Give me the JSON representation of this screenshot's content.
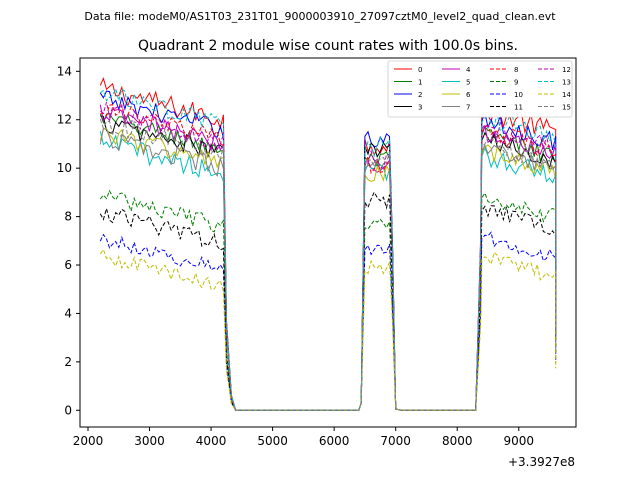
{
  "chart_data": {
    "type": "line",
    "suptitle": "Data file: modeM0/AS1T03_231T01_9000003910_27097cztM0_level2_quad_clean.evt",
    "title": "Quadrant 2 module wise count rates with 100.0s bins.",
    "xlabel": "",
    "ylabel": "",
    "x_offset_label": "+3.3927e8",
    "xlim": [
      1870,
      9930
    ],
    "ylim": [
      -0.69,
      14.55
    ],
    "xticks": [
      2000,
      3000,
      4000,
      5000,
      6000,
      7000,
      8000,
      9000
    ],
    "xtick_labels": [
      "2000",
      "3000",
      "4000",
      "5000",
      "6000",
      "7000",
      "8000",
      "9000"
    ],
    "yticks": [
      0,
      2,
      4,
      6,
      8,
      10,
      12,
      14
    ],
    "ytick_labels": [
      "0",
      "2",
      "4",
      "6",
      "8",
      "10",
      "12",
      "14"
    ],
    "grid": false,
    "legend_position": "top-right",
    "legend_columns": 4,
    "segments": [
      {
        "x_start": 2200,
        "x_end": 4200
      },
      {
        "x_start": 6500,
        "x_end": 6900
      },
      {
        "x_start": 8400,
        "x_end": 9600
      }
    ],
    "gap_x": [
      4300,
      4400,
      4500,
      6200,
      6300,
      6400,
      7000,
      7100,
      7200,
      8100,
      8200,
      8300
    ],
    "series": [
      {
        "name": "0",
        "color": "#ff0000",
        "dash": "solid",
        "level1": 12.4,
        "level2": 11.0,
        "level3": 11.8,
        "noise": 0.45
      },
      {
        "name": "1",
        "color": "#008000",
        "dash": "solid",
        "level1": 11.2,
        "level2": 10.3,
        "level3": 10.8,
        "noise": 0.4
      },
      {
        "name": "2",
        "color": "#0000ff",
        "dash": "solid",
        "level1": 12.0,
        "level2": 11.2,
        "level3": 11.4,
        "noise": 0.4
      },
      {
        "name": "3",
        "color": "#000000",
        "dash": "solid",
        "level1": 11.0,
        "level2": 10.8,
        "level3": 10.6,
        "noise": 0.4
      },
      {
        "name": "4",
        "color": "#bf00bf",
        "dash": "solid",
        "level1": 11.4,
        "level2": 10.2,
        "level3": 10.9,
        "noise": 0.4
      },
      {
        "name": "5",
        "color": "#00bfbf",
        "dash": "solid",
        "level1": 10.2,
        "level2": 9.8,
        "level3": 10.0,
        "noise": 0.45
      },
      {
        "name": "6",
        "color": "#bfbf00",
        "dash": "solid",
        "level1": 10.6,
        "level2": 9.7,
        "level3": 10.1,
        "noise": 0.4
      },
      {
        "name": "7",
        "color": "#808080",
        "dash": "solid",
        "level1": 10.4,
        "level2": 10.0,
        "level3": 10.2,
        "noise": 0.4
      },
      {
        "name": "8",
        "color": "#ff0000",
        "dash": "dashed",
        "level1": 11.6,
        "level2": 10.1,
        "level3": 11.0,
        "noise": 0.4
      },
      {
        "name": "9",
        "color": "#008000",
        "dash": "dashed",
        "level1": 8.0,
        "level2": 7.6,
        "level3": 8.3,
        "noise": 0.35
      },
      {
        "name": "10",
        "color": "#0000ff",
        "dash": "dashed",
        "level1": 6.2,
        "level2": 6.7,
        "level3": 6.6,
        "noise": 0.3
      },
      {
        "name": "11",
        "color": "#000000",
        "dash": "dashed",
        "level1": 7.3,
        "level2": 8.7,
        "level3": 7.8,
        "noise": 0.35
      },
      {
        "name": "12",
        "color": "#bf00bf",
        "dash": "dashed",
        "level1": 11.5,
        "level2": 10.3,
        "level3": 11.2,
        "noise": 0.4
      },
      {
        "name": "13",
        "color": "#00bfbf",
        "dash": "dashed",
        "level1": 12.2,
        "level2": 10.9,
        "level3": 11.5,
        "noise": 0.4
      },
      {
        "name": "14",
        "color": "#bfbf00",
        "dash": "dashed",
        "level1": 5.5,
        "level2": 5.9,
        "level3": 5.8,
        "noise": 0.3
      },
      {
        "name": "15",
        "color": "#808080",
        "dash": "dashed",
        "level1": 11.0,
        "level2": 10.4,
        "level3": 10.5,
        "noise": 0.4
      }
    ]
  }
}
